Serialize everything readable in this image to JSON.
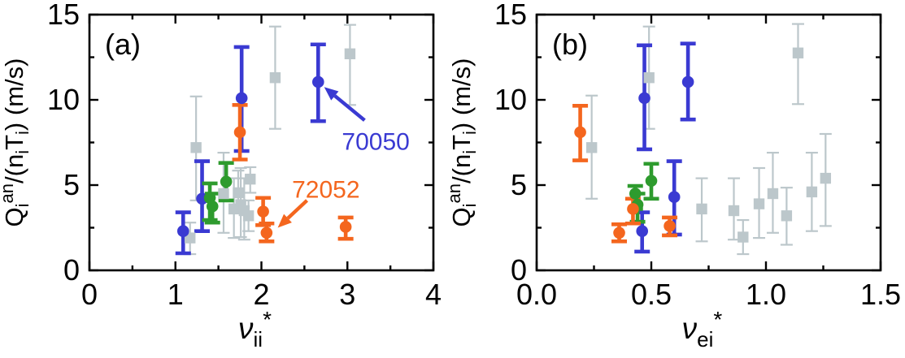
{
  "figure": {
    "background": "#ffffff",
    "colors": {
      "blue": "#3a3ad2",
      "orange": "#f4661e",
      "green": "#2e9b2e",
      "gray": "#bcc7cb",
      "axis": "#000000"
    }
  },
  "chart_data": [
    {
      "type": "scatter",
      "panel_label": "(a)",
      "xlabel": "nu_ii*",
      "xlabel_parts": {
        "base": "ν",
        "sub": "ii",
        "sup": "*"
      },
      "ylabel": "Q_i^an/(n_iT_i) (m/s)",
      "ylabel_parts": [
        {
          "t": "Q"
        },
        {
          "t": "i",
          "s": "sub"
        },
        {
          "t": "an",
          "s": "sup"
        },
        {
          "t": "/(n"
        },
        {
          "t": "i",
          "s": "sub"
        },
        {
          "t": "T"
        },
        {
          "t": "i",
          "s": "sub"
        },
        {
          "t": ") (m/s)"
        }
      ],
      "xlim": [
        0,
        4
      ],
      "ylim": [
        0,
        15
      ],
      "xticks": [
        0,
        1,
        2,
        3,
        4
      ],
      "xtick_labels": [
        "0",
        "1",
        "2",
        "3",
        "4"
      ],
      "xminorticks": [
        0.5,
        1.5,
        2.5,
        3.5
      ],
      "yticks": [
        0,
        5,
        10,
        15
      ],
      "ytick_labels": [
        "0",
        "5",
        "10",
        "15"
      ],
      "yminorticks": [
        2.5,
        7.5,
        12.5
      ],
      "grid": false,
      "series": [
        {
          "name": "gray-squares",
          "marker": "square",
          "color": "#bcc7cb",
          "points": [
            {
              "x": 1.17,
              "y": 1.9,
              "ep": 0.9,
              "em": 0.95
            },
            {
              "x": 1.24,
              "y": 7.2,
              "ep": 3.0,
              "em": 3.1
            },
            {
              "x": 1.56,
              "y": 4.5,
              "ep": 2.4,
              "em": 2.3
            },
            {
              "x": 1.68,
              "y": 3.6,
              "ep": 1.8,
              "em": 1.7
            },
            {
              "x": 1.73,
              "y": 4.55,
              "ep": 1.3,
              "em": 1.2
            },
            {
              "x": 1.76,
              "y": 3.85,
              "ep": 2.15,
              "em": 1.9
            },
            {
              "x": 1.8,
              "y": 3.5,
              "ep": 1.9,
              "em": 1.7
            },
            {
              "x": 1.85,
              "y": 3.2,
              "ep": 0.9,
              "em": 0.9
            },
            {
              "x": 1.87,
              "y": 5.35,
              "ep": 0.7,
              "em": 0.8
            },
            {
              "x": 2.16,
              "y": 11.3,
              "ep": 3.0,
              "em": 3.0
            },
            {
              "x": 3.03,
              "y": 12.7,
              "ep": 1.7,
              "em": 3.0
            }
          ]
        },
        {
          "name": "blue-circles",
          "marker": "circle",
          "color": "#3a3ad2",
          "points": [
            {
              "x": 1.09,
              "y": 2.3,
              "ep": 1.1,
              "em": 1.3
            },
            {
              "x": 1.31,
              "y": 4.2,
              "ep": 2.2,
              "em": 1.9
            },
            {
              "x": 1.77,
              "y": 10.1,
              "ep": 3.0,
              "em": 3.1
            },
            {
              "x": 2.66,
              "y": 11.05,
              "ep": 2.2,
              "em": 2.3
            }
          ]
        },
        {
          "name": "green-circles",
          "marker": "circle",
          "color": "#2e9b2e",
          "points": [
            {
              "x": 1.4,
              "y": 4.25,
              "ep": 0.85,
              "em": 1.3
            },
            {
              "x": 1.43,
              "y": 3.75,
              "ep": 0.75,
              "em": 0.95
            },
            {
              "x": 1.59,
              "y": 5.2,
              "ep": 1.1,
              "em": 1.1
            }
          ]
        },
        {
          "name": "orange-circles",
          "marker": "circle",
          "color": "#f4661e",
          "points": [
            {
              "x": 1.75,
              "y": 8.1,
              "ep": 1.6,
              "em": 1.6
            },
            {
              "x": 2.02,
              "y": 3.45,
              "ep": 0.8,
              "em": 0.8
            },
            {
              "x": 2.06,
              "y": 2.2,
              "ep": 0.55,
              "em": 0.5
            },
            {
              "x": 2.98,
              "y": 2.55,
              "ep": 0.55,
              "em": 0.7
            }
          ]
        }
      ],
      "annotations": [
        {
          "text": "70050",
          "color": "#3a3ad2",
          "text_x": 3.33,
          "text_y": 7.55,
          "tail": [
            3.2,
            8.8
          ],
          "tip": [
            2.73,
            10.75
          ]
        },
        {
          "text": "72052",
          "color": "#f4661e",
          "text_x": 2.75,
          "text_y": 4.75,
          "tail": [
            2.53,
            4.1
          ],
          "tip": [
            2.19,
            2.5
          ]
        }
      ]
    },
    {
      "type": "scatter",
      "panel_label": "(b)",
      "xlabel": "nu_ei*",
      "xlabel_parts": {
        "base": "ν",
        "sub": "ei",
        "sup": "*"
      },
      "ylabel": "Q_i^an/(n_iT_i) (m/s)",
      "ylabel_parts": [
        {
          "t": "Q"
        },
        {
          "t": "i",
          "s": "sub"
        },
        {
          "t": "an",
          "s": "sup"
        },
        {
          "t": "/(n"
        },
        {
          "t": "i",
          "s": "sub"
        },
        {
          "t": "T"
        },
        {
          "t": "i",
          "s": "sub"
        },
        {
          "t": ") (m/s)"
        }
      ],
      "xlim": [
        0,
        1.5
      ],
      "ylim": [
        0,
        15
      ],
      "xticks": [
        0,
        0.5,
        1.0,
        1.5
      ],
      "xtick_labels": [
        "0.0",
        "0.5",
        "1.0",
        "1.5"
      ],
      "xminorticks": [
        0.25,
        0.75,
        1.25
      ],
      "yticks": [
        0,
        5,
        10,
        15
      ],
      "ytick_labels": [
        "0",
        "5",
        "10",
        "15"
      ],
      "yminorticks": [
        2.5,
        7.5,
        12.5
      ],
      "grid": false,
      "series": [
        {
          "name": "gray-squares",
          "marker": "square",
          "color": "#bcc7cb",
          "points": [
            {
              "x": 0.24,
              "y": 7.2,
              "ep": 3.05,
              "em": 3.0
            },
            {
              "x": 0.49,
              "y": 11.3,
              "ep": 3.0,
              "em": 3.0
            },
            {
              "x": 0.72,
              "y": 3.6,
              "ep": 1.8,
              "em": 1.9
            },
            {
              "x": 0.86,
              "y": 3.5,
              "ep": 1.9,
              "em": 1.7
            },
            {
              "x": 0.9,
              "y": 1.95,
              "ep": 1.0,
              "em": 1.0
            },
            {
              "x": 0.97,
              "y": 3.9,
              "ep": 2.1,
              "em": 2.0
            },
            {
              "x": 1.03,
              "y": 4.5,
              "ep": 2.4,
              "em": 2.3
            },
            {
              "x": 1.09,
              "y": 3.2,
              "ep": 1.65,
              "em": 1.7
            },
            {
              "x": 1.14,
              "y": 12.75,
              "ep": 1.7,
              "em": 3.0
            },
            {
              "x": 1.2,
              "y": 4.6,
              "ep": 2.3,
              "em": 2.3
            },
            {
              "x": 1.26,
              "y": 5.4,
              "ep": 2.6,
              "em": 2.8
            }
          ]
        },
        {
          "name": "blue-circles",
          "marker": "circle",
          "color": "#3a3ad2",
          "points": [
            {
              "x": 0.46,
              "y": 2.3,
              "ep": 1.1,
              "em": 1.2
            },
            {
              "x": 0.47,
              "y": 10.1,
              "ep": 3.1,
              "em": 3.0
            },
            {
              "x": 0.6,
              "y": 4.3,
              "ep": 2.1,
              "em": 2.2
            },
            {
              "x": 0.66,
              "y": 11.05,
              "ep": 2.25,
              "em": 2.2
            }
          ]
        },
        {
          "name": "green-circles",
          "marker": "circle",
          "color": "#2e9b2e",
          "points": [
            {
              "x": 0.43,
              "y": 4.5,
              "ep": 0.45,
              "em": 0.9
            },
            {
              "x": 0.44,
              "y": 3.85,
              "ep": 0.65,
              "em": 1.0
            },
            {
              "x": 0.5,
              "y": 5.25,
              "ep": 1.0,
              "em": 1.05
            }
          ]
        },
        {
          "name": "orange-circles",
          "marker": "circle",
          "color": "#f4661e",
          "points": [
            {
              "x": 0.19,
              "y": 8.1,
              "ep": 1.55,
              "em": 1.65
            },
            {
              "x": 0.36,
              "y": 2.2,
              "ep": 0.5,
              "em": 0.5
            },
            {
              "x": 0.42,
              "y": 3.6,
              "ep": 0.6,
              "em": 0.85
            },
            {
              "x": 0.58,
              "y": 2.6,
              "ep": 0.5,
              "em": 0.55
            }
          ]
        }
      ],
      "annotations": []
    }
  ]
}
